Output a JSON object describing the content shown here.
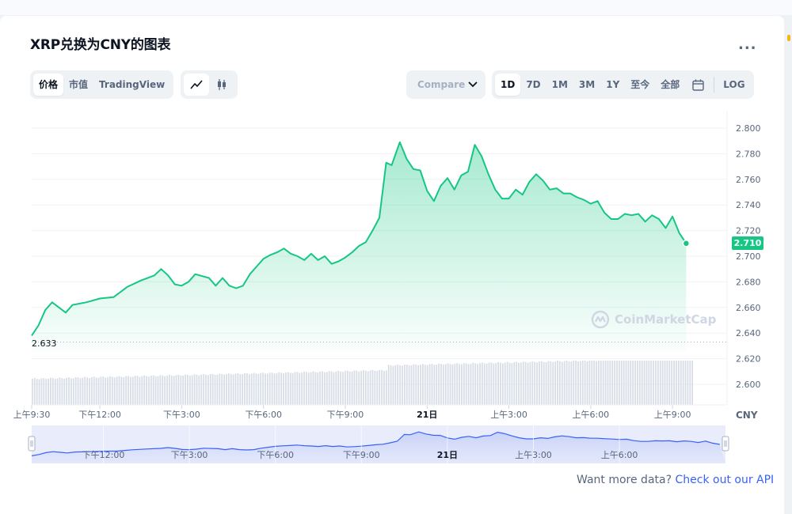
{
  "title": "XRP兑换为CNY的图表",
  "more_label": "...",
  "view_tabs": [
    {
      "label": "价格",
      "active": true
    },
    {
      "label": "市值",
      "active": false
    },
    {
      "label": "TradingView",
      "active": false
    }
  ],
  "chart_type_tabs": [
    {
      "icon": "line-chart-icon",
      "active": true
    },
    {
      "icon": "candlestick-icon",
      "active": false
    }
  ],
  "compare": {
    "label": "Compare with"
  },
  "time_tabs": [
    {
      "label": "1D",
      "active": true
    },
    {
      "label": "7D",
      "active": false
    },
    {
      "label": "1M",
      "active": false
    },
    {
      "label": "3M",
      "active": false
    },
    {
      "label": "1Y",
      "active": false
    },
    {
      "label": "至今",
      "active": false
    },
    {
      "label": "全部",
      "active": false
    }
  ],
  "calendar_icon": "calendar-icon",
  "log_label": "LOG",
  "current_price_label": "2.710",
  "open_price_label": "2.633",
  "currency_label": "CNY",
  "watermark": "CoinMarketCap",
  "api": {
    "text": "Want more data?",
    "link": "Check out our API"
  },
  "colors": {
    "up": "#16c784",
    "accent": "#3861fb",
    "volume": "#cfd6e4"
  },
  "chart_data": {
    "type": "area",
    "title": "XRP兑换为CNY的图表",
    "ylim": [
      2.59,
      2.81
    ],
    "y_ticks": [
      "2.800",
      "2.780",
      "2.760",
      "2.740",
      "2.720",
      "2.700",
      "2.680",
      "2.660",
      "2.640",
      "2.620",
      "2.600"
    ],
    "x_ticks": [
      {
        "label": "上午9:30",
        "t": 0,
        "bold": false
      },
      {
        "label": "下午12:00",
        "t": 2.5,
        "bold": false
      },
      {
        "label": "下午3:00",
        "t": 5.5,
        "bold": false
      },
      {
        "label": "下午6:00",
        "t": 8.5,
        "bold": false
      },
      {
        "label": "下午9:00",
        "t": 11.5,
        "bold": false
      },
      {
        "label": "21日",
        "t": 14.5,
        "bold": true
      },
      {
        "label": "上午3:00",
        "t": 17.5,
        "bold": false
      },
      {
        "label": "上午6:00",
        "t": 20.5,
        "bold": false
      },
      {
        "label": "上午9:00",
        "t": 23.5,
        "bold": false
      }
    ],
    "navigator_ticks": [
      {
        "label": "下午12:00",
        "t": 2.5,
        "bold": false
      },
      {
        "label": "下午3:00",
        "t": 5.5,
        "bold": false
      },
      {
        "label": "下午6:00",
        "t": 8.5,
        "bold": false
      },
      {
        "label": "下午9:00",
        "t": 11.5,
        "bold": false
      },
      {
        "label": "21日",
        "t": 14.5,
        "bold": true
      },
      {
        "label": "上午3:00",
        "t": 17.5,
        "bold": false
      },
      {
        "label": "上午6:00",
        "t": 20.5,
        "bold": false
      }
    ],
    "reference_line": 2.633,
    "current_price": 2.71,
    "grid": true,
    "series": [
      {
        "values_t": [
          0,
          0.25,
          0.5,
          0.75,
          1.0,
          1.25,
          1.5,
          2.0,
          2.5,
          3.0,
          3.25,
          3.5,
          4.0,
          4.5,
          4.75,
          5.0,
          5.25,
          5.5,
          5.75,
          6.0,
          6.5,
          6.75,
          7.0,
          7.25,
          7.5,
          7.75,
          8.0,
          8.25,
          8.5,
          8.75,
          9.0,
          9.25,
          9.5,
          9.75,
          10.0,
          10.25,
          10.5,
          10.75,
          11.0,
          11.25,
          11.5,
          11.75,
          12.0,
          12.25,
          12.5,
          12.75,
          13.0,
          13.2,
          13.5,
          13.75,
          14.0,
          14.25,
          14.5,
          14.75,
          15.0,
          15.25,
          15.5,
          15.75,
          16.0,
          16.25,
          16.5,
          16.75,
          17.0,
          17.25,
          17.5,
          17.75,
          18.0,
          18.25,
          18.5,
          18.75,
          19.0,
          19.25,
          19.5,
          19.75,
          20.0,
          20.25,
          20.5,
          20.75,
          21.0,
          21.25,
          21.5,
          21.75,
          22.0,
          22.25,
          22.5,
          22.75,
          23.0,
          23.25,
          23.5,
          23.75,
          24.0
        ],
        "values": [
          2.638,
          2.646,
          2.658,
          2.664,
          2.66,
          2.656,
          2.662,
          2.664,
          2.667,
          2.668,
          2.672,
          2.676,
          2.681,
          2.685,
          2.69,
          2.685,
          2.678,
          2.677,
          2.68,
          2.686,
          2.683,
          2.677,
          2.683,
          2.677,
          2.675,
          2.677,
          2.686,
          2.692,
          2.698,
          2.701,
          2.703,
          2.706,
          2.702,
          2.7,
          2.697,
          2.702,
          2.697,
          2.7,
          2.694,
          2.696,
          2.699,
          2.703,
          2.708,
          2.711,
          2.72,
          2.73,
          2.773,
          2.771,
          2.789,
          2.776,
          2.768,
          2.767,
          2.751,
          2.743,
          2.755,
          2.761,
          2.752,
          2.763,
          2.766,
          2.787,
          2.778,
          2.764,
          2.752,
          2.745,
          2.745,
          2.752,
          2.748,
          2.758,
          2.764,
          2.759,
          2.752,
          2.753,
          2.749,
          2.749,
          2.746,
          2.744,
          2.741,
          2.743,
          2.734,
          2.729,
          2.729,
          2.733,
          2.732,
          2.733,
          2.727,
          2.732,
          2.729,
          2.722,
          2.731,
          2.718,
          2.71
        ]
      }
    ],
    "volume_note": "volume bars rising gradually through the day"
  }
}
